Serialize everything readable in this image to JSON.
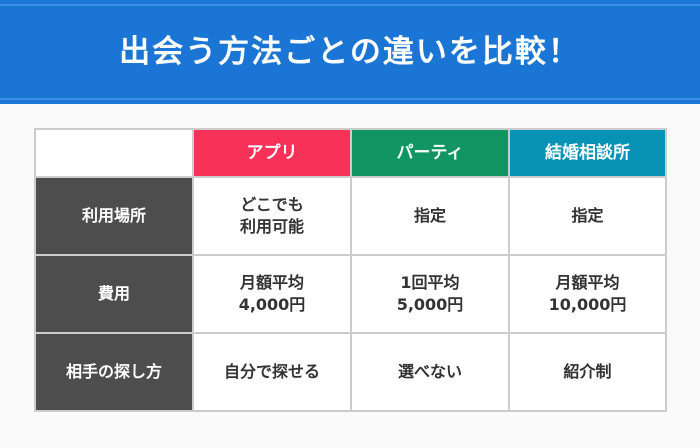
{
  "title": "出会う方法ごとの違いを比較！",
  "colors": {
    "banner": "#1a75d4",
    "app": "#f73157",
    "party": "#119562",
    "agency": "#0892b6",
    "row_header": "#4d4d4d"
  },
  "columns": [
    "",
    "アプリ",
    "パーティ",
    "結婚相談所"
  ],
  "rows": [
    {
      "label": "利用場所",
      "cells": [
        [
          "どこでも",
          "利用可能"
        ],
        [
          "指定"
        ],
        [
          "指定"
        ]
      ]
    },
    {
      "label": "費用",
      "cells": [
        [
          "月額平均",
          "4,000円"
        ],
        [
          "1回平均",
          "5,000円"
        ],
        [
          "月額平均",
          "10,000円"
        ]
      ]
    },
    {
      "label": "相手の探し方",
      "cells": [
        [
          "自分で探せる"
        ],
        [
          "選べない"
        ],
        [
          "紹介制"
        ]
      ]
    }
  ]
}
